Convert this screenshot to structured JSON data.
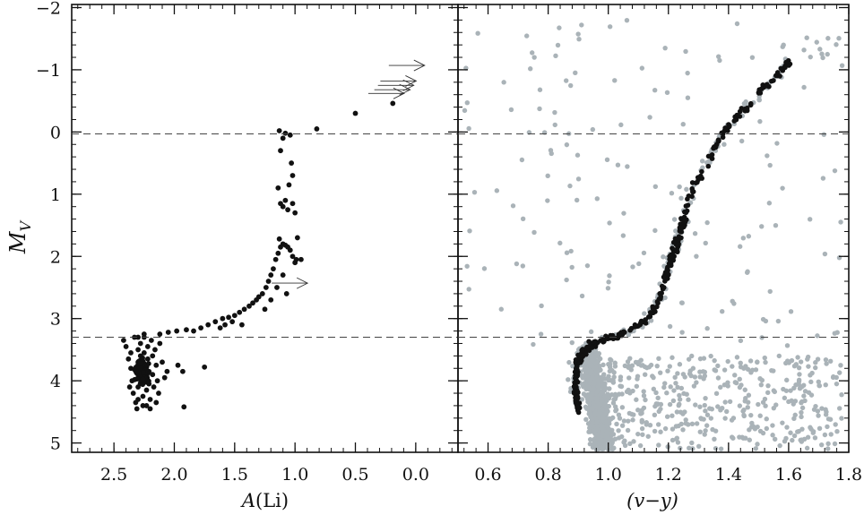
{
  "chart_data": [
    {
      "panel": "left",
      "type": "scatter",
      "title": "",
      "xlabel_main": "A",
      "xlabel_paren": "(Li)",
      "ylabel_main": "M",
      "ylabel_sub": "V",
      "xlim": [
        2.85,
        -0.35
      ],
      "ylim": [
        5.15,
        -2.05
      ],
      "x_ticks": [
        2.5,
        2.0,
        1.5,
        1.0,
        0.5,
        0.0
      ],
      "x_tick_labels": [
        "2.5",
        "2.0",
        "1.5",
        "1.0",
        "0.5",
        "0.0"
      ],
      "y_ticks": [
        -2,
        -1,
        0,
        1,
        2,
        3,
        4,
        5
      ],
      "y_tick_labels": [
        "−2",
        "−1",
        "0",
        "1",
        "2",
        "3",
        "4",
        "5"
      ],
      "hlines": [
        0.03,
        3.3
      ],
      "grid": false,
      "series": [
        {
          "marker": "black-dot",
          "color": "#111111",
          "points": [
            [
              2.42,
              3.35
            ],
            [
              2.4,
              3.45
            ],
            [
              2.38,
              3.65
            ],
            [
              2.36,
              3.8
            ],
            [
              2.35,
              4.0
            ],
            [
              2.34,
              4.2
            ],
            [
              2.32,
              4.35
            ],
            [
              2.3,
              3.3
            ],
            [
              2.3,
              3.5
            ],
            [
              2.3,
              3.7
            ],
            [
              2.3,
              3.9
            ],
            [
              2.3,
              4.1
            ],
            [
              2.3,
              4.3
            ],
            [
              2.28,
              3.4
            ],
            [
              2.28,
              3.6
            ],
            [
              2.27,
              3.8
            ],
            [
              2.27,
              4.0
            ],
            [
              2.26,
              4.25
            ],
            [
              2.26,
              4.4
            ],
            [
              2.25,
              3.3
            ],
            [
              2.25,
              3.55
            ],
            [
              2.24,
              3.75
            ],
            [
              2.24,
              3.95
            ],
            [
              2.23,
              4.15
            ],
            [
              2.22,
              3.45
            ],
            [
              2.22,
              3.65
            ],
            [
              2.21,
              3.85
            ],
            [
              2.21,
              4.05
            ],
            [
              2.2,
              4.3
            ],
            [
              2.2,
              4.45
            ],
            [
              2.19,
              3.35
            ],
            [
              2.18,
              3.6
            ],
            [
              2.18,
              3.9
            ],
            [
              2.17,
              4.1
            ],
            [
              2.16,
              3.5
            ],
            [
              2.15,
              3.75
            ],
            [
              2.14,
              4.0
            ],
            [
              2.13,
              4.2
            ],
            [
              2.12,
              3.4
            ],
            [
              2.1,
              3.7
            ],
            [
              2.08,
              3.95
            ],
            [
              2.06,
              3.85
            ],
            [
              2.25,
              3.25
            ],
            [
              2.33,
              3.3
            ],
            [
              2.36,
              3.55
            ],
            [
              2.31,
              4.45
            ],
            [
              2.23,
              4.4
            ],
            [
              2.15,
              4.35
            ],
            [
              2.37,
              4.1
            ],
            [
              1.97,
              3.75
            ],
            [
              1.93,
              3.85
            ],
            [
              1.92,
              4.42
            ],
            [
              1.75,
              3.78
            ],
            [
              2.12,
              3.25
            ],
            [
              2.05,
              3.22
            ],
            [
              1.98,
              3.2
            ],
            [
              1.9,
              3.18
            ],
            [
              1.84,
              3.2
            ],
            [
              1.78,
              3.15
            ],
            [
              1.72,
              3.1
            ],
            [
              1.66,
              3.05
            ],
            [
              1.6,
              3.0
            ],
            [
              1.55,
              2.98
            ],
            [
              1.5,
              2.95
            ],
            [
              1.46,
              2.9
            ],
            [
              1.42,
              2.85
            ],
            [
              1.38,
              2.8
            ],
            [
              1.35,
              2.75
            ],
            [
              1.32,
              2.7
            ],
            [
              1.3,
              2.65
            ],
            [
              1.27,
              2.6
            ],
            [
              1.24,
              2.5
            ],
            [
              1.22,
              2.4
            ],
            [
              1.2,
              2.3
            ],
            [
              1.18,
              2.2
            ],
            [
              1.16,
              2.05
            ],
            [
              1.14,
              1.95
            ],
            [
              1.12,
              1.85
            ],
            [
              1.1,
              1.8
            ],
            [
              1.08,
              1.82
            ],
            [
              1.06,
              1.85
            ],
            [
              1.04,
              1.9
            ],
            [
              1.02,
              2.0
            ],
            [
              1.0,
              2.1
            ],
            [
              0.95,
              2.05
            ],
            [
              0.98,
              1.7
            ],
            [
              1.1,
              2.3
            ],
            [
              1.15,
              2.5
            ],
            [
              1.2,
              2.7
            ],
            [
              1.25,
              2.85
            ],
            [
              1.44,
              3.1
            ],
            [
              1.52,
              3.05
            ],
            [
              1.58,
              3.1
            ],
            [
              1.62,
              3.15
            ],
            [
              1.12,
              1.15
            ],
            [
              1.1,
              1.2
            ],
            [
              1.08,
              1.1
            ],
            [
              1.06,
              1.25
            ],
            [
              1.14,
              0.9
            ],
            [
              1.05,
              0.85
            ],
            [
              1.02,
              0.7
            ],
            [
              1.03,
              0.5
            ],
            [
              1.12,
              0.3
            ],
            [
              1.1,
              0.1
            ],
            [
              1.08,
              0.02
            ],
            [
              1.04,
              0.05
            ],
            [
              1.13,
              -0.02
            ],
            [
              0.82,
              -0.05
            ],
            [
              0.5,
              -0.3
            ],
            [
              0.19,
              -0.46
            ],
            [
              1.0,
              1.3
            ],
            [
              1.02,
              1.15
            ],
            [
              0.99,
              2.05
            ],
            [
              1.07,
              2.6
            ],
            [
              1.13,
              1.72
            ]
          ]
        }
      ],
      "upper_limits": [
        [
          0.03,
          -1.07
        ],
        [
          0.1,
          -0.82
        ],
        [
          0.12,
          -0.75
        ],
        [
          0.15,
          -0.68
        ],
        [
          0.2,
          -0.62
        ],
        [
          1.0,
          2.43
        ]
      ]
    },
    {
      "panel": "right",
      "type": "scatter",
      "title": "",
      "xlabel": "(v−y)",
      "xlim": [
        0.5,
        1.8
      ],
      "ylim": [
        5.15,
        -2.05
      ],
      "x_ticks": [
        0.6,
        0.8,
        1.0,
        1.2,
        1.4,
        1.6,
        1.8
      ],
      "x_tick_labels": [
        "0.6",
        "0.8",
        "1.0",
        "1.2",
        "1.4",
        "1.6",
        "1.8"
      ],
      "y_ticks": [
        -2,
        -1,
        0,
        1,
        2,
        3,
        4,
        5
      ],
      "hlines": [
        0.03,
        3.3
      ],
      "grid": false,
      "series": [
        {
          "name_hidden": "field",
          "marker": "gray-dot",
          "color": "#aab3b8",
          "generated_from": {
            "main_sequence_cloud": {
              "x_range": [
                0.86,
                1.05
              ],
              "y_range": [
                3.3,
                5.15
              ],
              "count": 900
            },
            "scattered_field": {
              "x_range": [
                0.95,
                1.78
              ],
              "y_range": [
                3.5,
                5.1
              ],
              "count": 420
            },
            "sparse_field": {
              "x_range": [
                0.52,
                1.8
              ],
              "y_range": [
                -1.8,
                3.5
              ],
              "count": 150
            },
            "giant_branch": {
              "count": 160
            }
          }
        },
        {
          "name_hidden": "sample",
          "marker": "black-dot",
          "color": "#111111",
          "giant_branch_path": [
            [
              0.9,
              4.45
            ],
            [
              0.89,
              4.2
            ],
            [
              0.89,
              3.95
            ],
            [
              0.9,
              3.7
            ],
            [
              0.92,
              3.5
            ],
            [
              0.96,
              3.38
            ],
            [
              1.02,
              3.28
            ],
            [
              1.08,
              3.18
            ],
            [
              1.12,
              3.05
            ],
            [
              1.16,
              2.8
            ],
            [
              1.18,
              2.5
            ],
            [
              1.2,
              2.2
            ],
            [
              1.22,
              1.9
            ],
            [
              1.24,
              1.6
            ],
            [
              1.26,
              1.2
            ],
            [
              1.28,
              0.9
            ],
            [
              1.32,
              0.6
            ],
            [
              1.35,
              0.3
            ],
            [
              1.38,
              0.05
            ],
            [
              1.42,
              -0.2
            ],
            [
              1.47,
              -0.45
            ],
            [
              1.52,
              -0.72
            ],
            [
              1.56,
              -0.9
            ],
            [
              1.6,
              -1.12
            ]
          ],
          "count": 330
        }
      ]
    }
  ]
}
